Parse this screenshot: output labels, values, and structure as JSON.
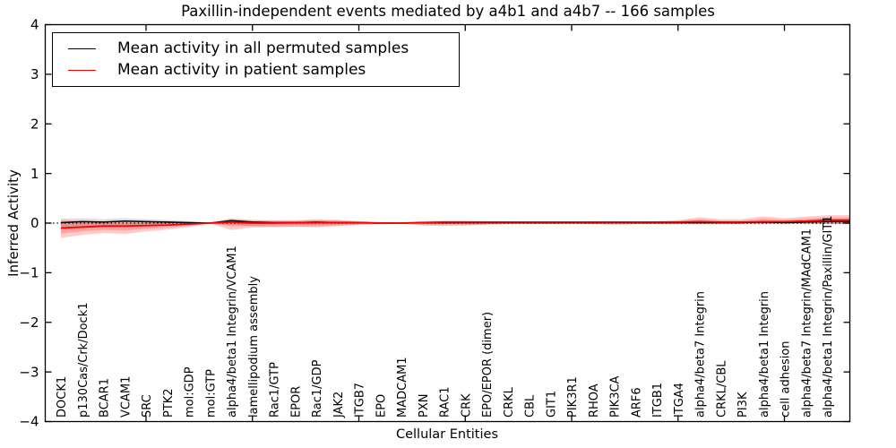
{
  "chart_data": {
    "type": "line",
    "title": "Paxillin-independent events mediated by a4b1 and a4b7 -- 166 samples",
    "xlabel": "Cellular Entities",
    "ylabel": "Inferred Activity",
    "ylim": [
      -4,
      4
    ],
    "yticks": [
      4,
      3,
      2,
      1,
      0,
      -1,
      -2,
      -3,
      -4
    ],
    "xtick_step": 5,
    "grid": false,
    "zero_line": true,
    "legend_position": "upper left",
    "categories": [
      "DOCK1",
      "p130Cas/Crk/Dock1",
      "BCAR1",
      "VCAM1",
      "SRC",
      "PTK2",
      "mol:GDP",
      "mol:GTP",
      "alpha4/beta1 Integrin/VCAM1",
      "lamellipodium assembly",
      "Rac1/GTP",
      "EPOR",
      "Rac1/GDP",
      "JAK2",
      "ITGB7",
      "EPO",
      "MADCAM1",
      "PXN",
      "RAC1",
      "CRK",
      "EPO/EPOR (dimer)",
      "CRKL",
      "CBL",
      "GIT1",
      "PIK3R1",
      "RHOA",
      "PIK3CA",
      "ARF6",
      "ITGB1",
      "ITGA4",
      "alpha4/beta7 Integrin",
      "CRKL/CBL",
      "PI3K",
      "alpha4/beta1 Integrin",
      "cell adhesion",
      "alpha4/beta7 Integrin/MAdCAM1",
      "alpha4/beta1 Integrin/Paxillin/GIT1"
    ],
    "series": [
      {
        "name": "Mean activity in all permuted samples",
        "color": "#000000",
        "values": [
          0.01,
          0.03,
          0.02,
          0.04,
          0.03,
          0.02,
          0.01,
          0.0,
          0.05,
          0.02,
          0.01,
          0.01,
          0.02,
          0.01,
          0.01,
          0.0,
          0.0,
          0.01,
          0.01,
          0.01,
          0.01,
          0.01,
          0.01,
          0.01,
          0.01,
          0.01,
          0.01,
          0.01,
          0.01,
          0.01,
          0.01,
          0.01,
          0.01,
          0.02,
          0.01,
          0.02,
          0.03
        ]
      },
      {
        "name": "Mean activity in patient samples",
        "color": "#ff0000",
        "values": [
          -0.1,
          -0.08,
          -0.06,
          -0.06,
          -0.05,
          -0.04,
          -0.02,
          0.0,
          0.02,
          0.0,
          0.0,
          0.01,
          0.01,
          0.01,
          0.01,
          0.0,
          0.0,
          0.01,
          0.02,
          0.02,
          0.02,
          0.02,
          0.02,
          0.02,
          0.02,
          0.02,
          0.02,
          0.02,
          0.02,
          0.02,
          0.03,
          0.02,
          0.02,
          0.03,
          0.03,
          0.04,
          0.06
        ]
      }
    ],
    "bands": [
      {
        "name": "permuted-range-band",
        "series_ref": 0,
        "color": "#000000",
        "opacity": 0.13,
        "core_scale": 0,
        "upper": [
          0.09,
          0.1,
          0.08,
          0.1,
          0.08,
          0.06,
          0.04,
          0.01,
          0.08,
          0.06,
          0.05,
          0.04,
          0.06,
          0.05,
          0.03,
          0.02,
          0.01,
          0.03,
          0.03,
          0.03,
          0.02,
          0.02,
          0.02,
          0.02,
          0.02,
          0.02,
          0.02,
          0.02,
          0.02,
          0.02,
          0.03,
          0.02,
          0.02,
          0.03,
          0.02,
          0.03,
          0.04
        ],
        "lower": [
          -0.1,
          -0.07,
          -0.05,
          -0.04,
          -0.05,
          -0.05,
          -0.03,
          -0.01,
          -0.03,
          -0.07,
          -0.08,
          -0.07,
          -0.08,
          -0.05,
          -0.03,
          -0.02,
          -0.01,
          -0.05,
          -0.06,
          -0.05,
          -0.03,
          -0.02,
          -0.02,
          -0.02,
          -0.02,
          -0.02,
          -0.02,
          -0.02,
          -0.02,
          -0.02,
          -0.02,
          -0.02,
          -0.02,
          -0.02,
          -0.02,
          -0.02,
          -0.02
        ]
      },
      {
        "name": "patient-range-band",
        "series_ref": 1,
        "color": "#ff0000",
        "opacity": 0.2,
        "core_scale": 0.55,
        "upper": [
          0.06,
          0.05,
          0.04,
          0.03,
          0.04,
          0.04,
          0.03,
          0.01,
          0.1,
          0.06,
          0.06,
          0.06,
          0.08,
          0.07,
          0.04,
          0.02,
          0.01,
          0.04,
          0.05,
          0.05,
          0.04,
          0.04,
          0.03,
          0.03,
          0.03,
          0.04,
          0.04,
          0.03,
          0.04,
          0.06,
          0.12,
          0.08,
          0.08,
          0.14,
          0.1,
          0.13,
          0.16
        ],
        "lower": [
          -0.3,
          -0.24,
          -0.2,
          -0.22,
          -0.17,
          -0.13,
          -0.08,
          -0.01,
          -0.14,
          -0.09,
          -0.08,
          -0.07,
          -0.08,
          -0.06,
          -0.04,
          -0.02,
          -0.01,
          -0.04,
          -0.04,
          -0.04,
          -0.03,
          -0.02,
          -0.02,
          -0.02,
          -0.02,
          -0.02,
          -0.03,
          -0.02,
          -0.02,
          -0.02,
          -0.02,
          -0.02,
          -0.02,
          -0.02,
          -0.01,
          -0.01,
          -0.02
        ]
      }
    ]
  },
  "legend": {
    "entries": [
      {
        "label": "Mean activity in all permuted samples",
        "color": "#000000"
      },
      {
        "label": "Mean activity in patient samples",
        "color": "#ff0000"
      }
    ]
  }
}
